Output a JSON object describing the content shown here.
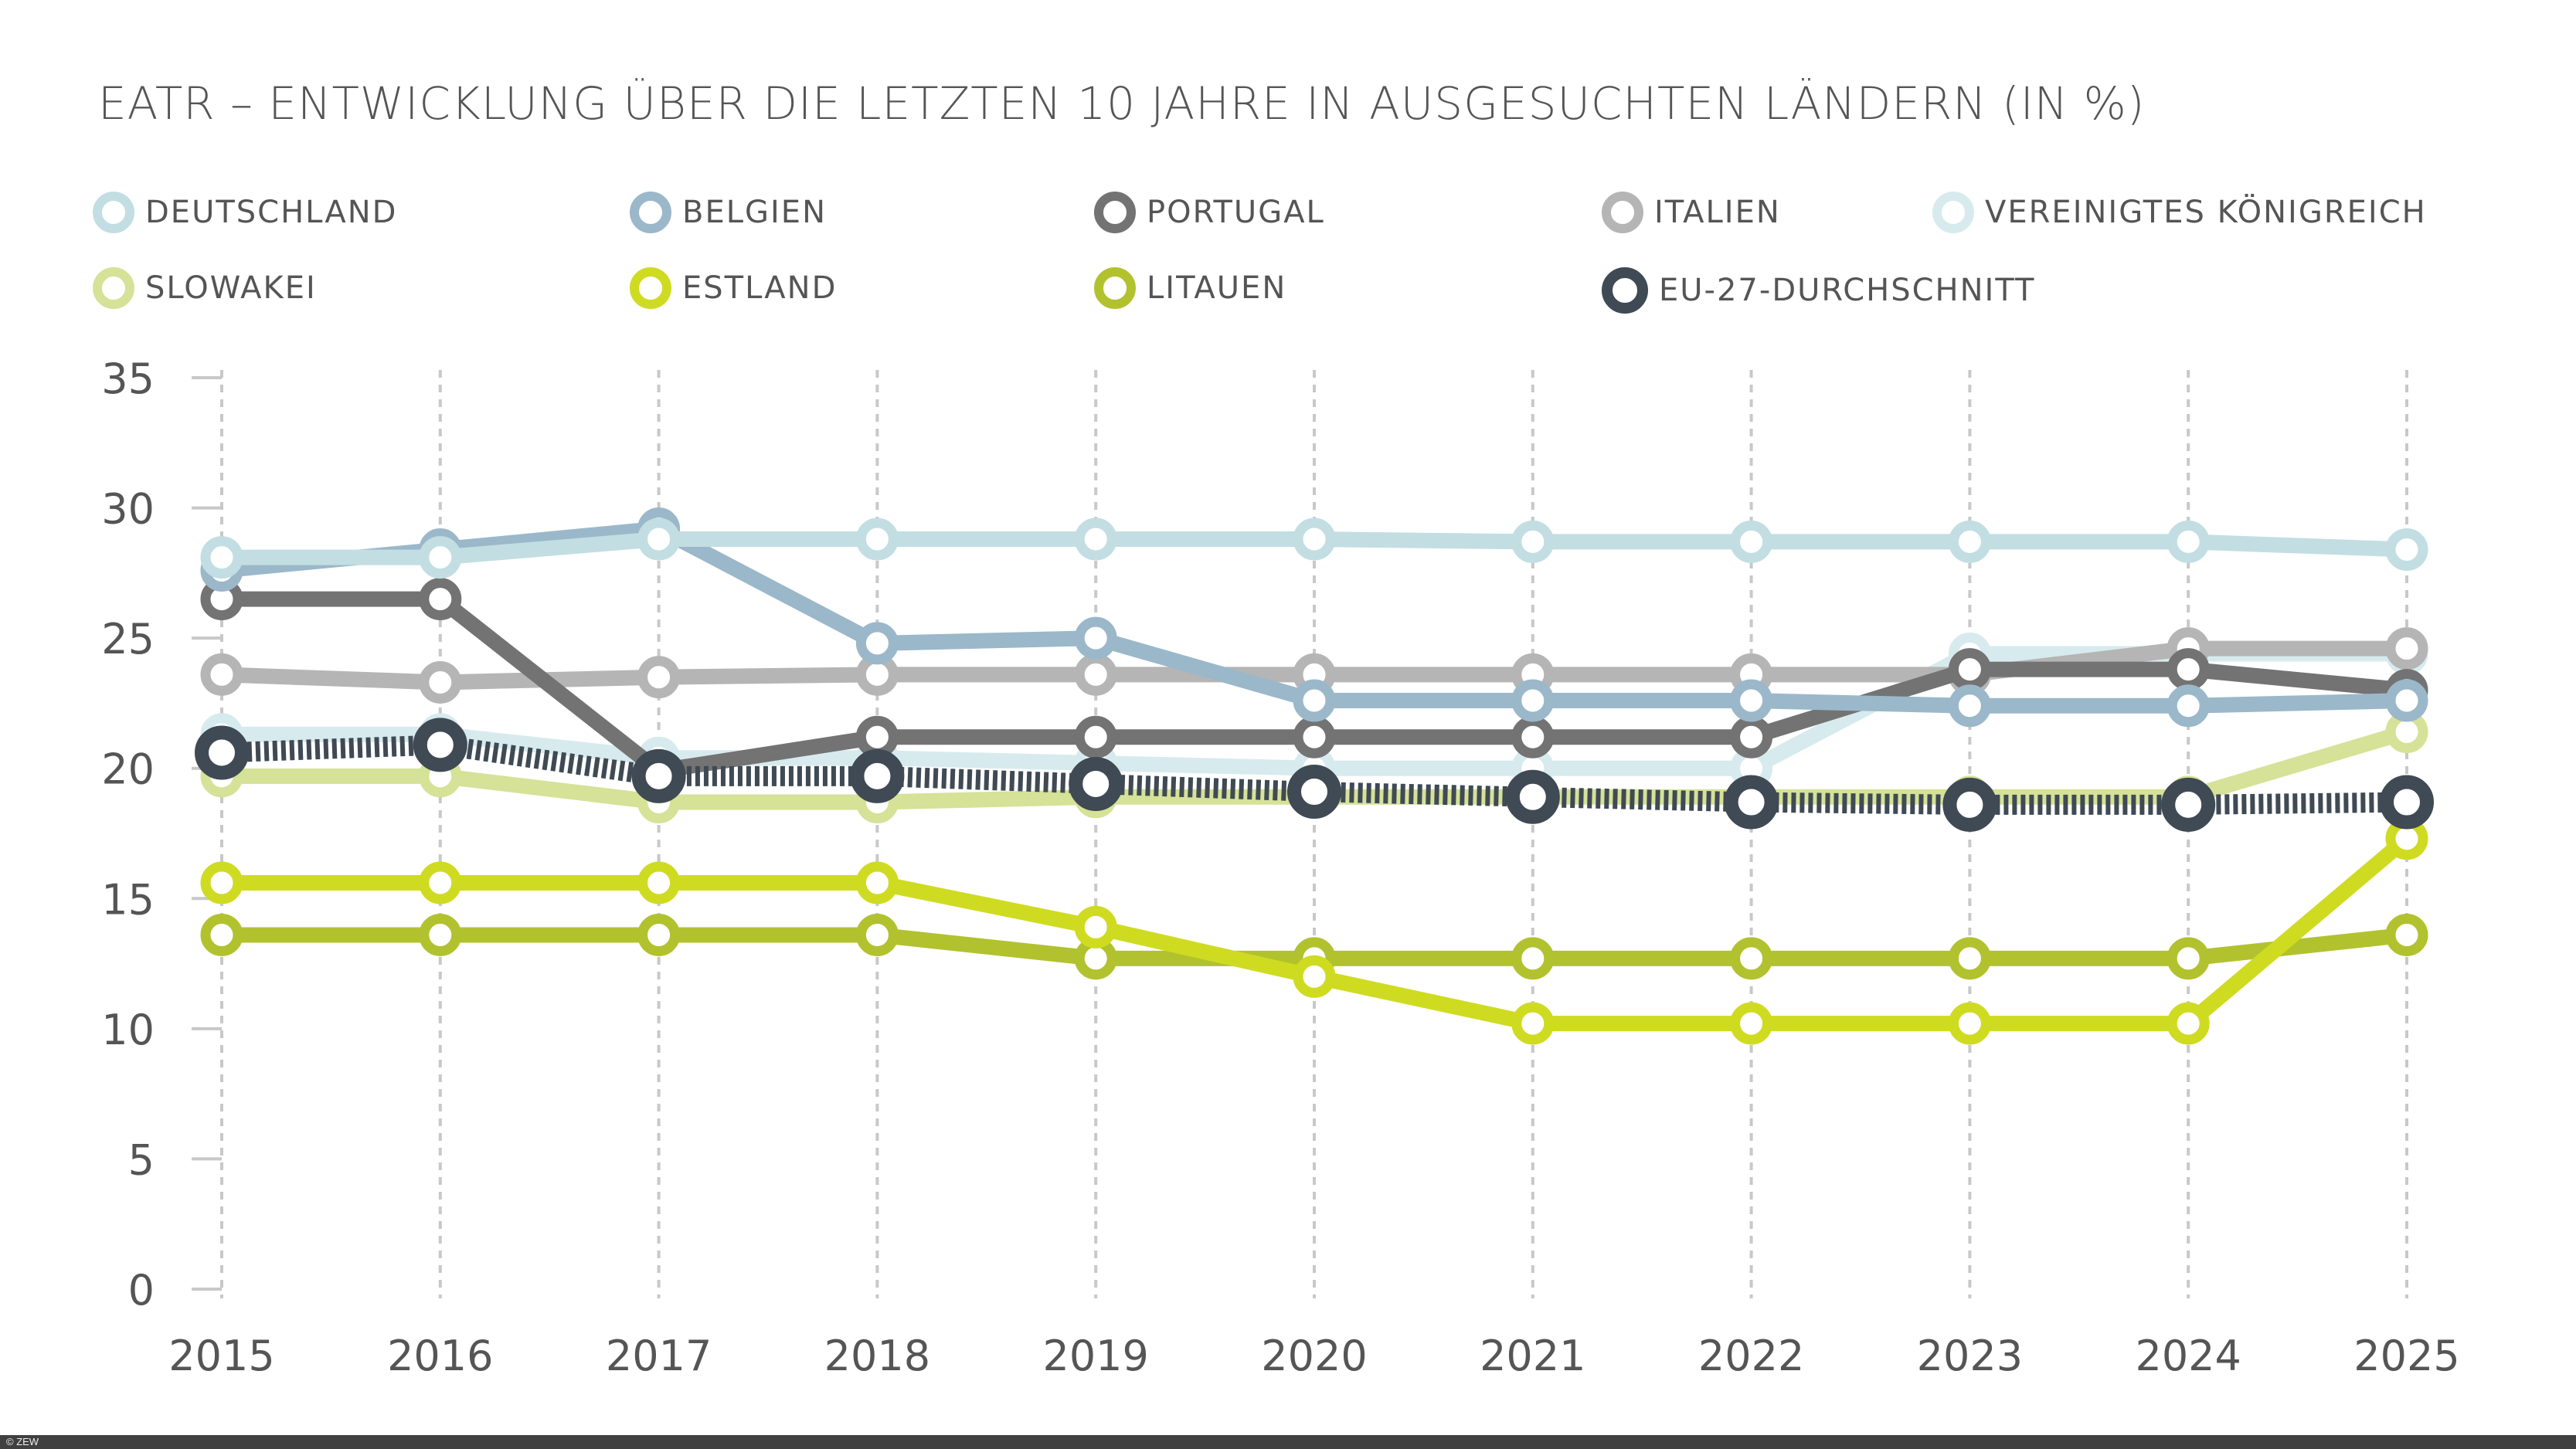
{
  "chart_data": {
    "type": "line",
    "title": "EATR – ENTWICKLUNG ÜBER DIE LETZTEN 10 JAHRE IN AUSGESUCHTEN LÄNDERN (IN %)",
    "xlabel": "",
    "ylabel": "",
    "x": [
      "2015",
      "2016",
      "2017",
      "2018",
      "2019",
      "2020",
      "2021",
      "2022",
      "2023",
      "2024",
      "2025"
    ],
    "ylim": [
      0,
      35
    ],
    "yticks": [
      "0",
      "5",
      "10",
      "15",
      "20",
      "25",
      "30",
      "35"
    ],
    "grid": "vertical dashed",
    "legend_placement": "top",
    "series": [
      {
        "name": "DEUTSCHLAND",
        "color": "#c2dee2",
        "values": [
          28.1,
          28.1,
          28.8,
          28.8,
          28.8,
          28.8,
          28.7,
          28.7,
          28.7,
          28.7,
          28.4
        ]
      },
      {
        "name": "BELGIEN",
        "color": "#9bb8ca",
        "values": [
          27.6,
          28.4,
          29.2,
          24.8,
          25.0,
          22.6,
          22.6,
          22.6,
          22.4,
          22.4,
          22.6
        ]
      },
      {
        "name": "PORTUGAL",
        "color": "#737373",
        "values": [
          26.5,
          26.5,
          19.9,
          21.2,
          21.2,
          21.2,
          21.2,
          21.2,
          23.8,
          23.8,
          23.0
        ]
      },
      {
        "name": "ITALIEN",
        "color": "#b5b5b5",
        "values": [
          23.6,
          23.3,
          23.5,
          23.6,
          23.6,
          23.6,
          23.6,
          23.6,
          23.6,
          24.6,
          24.6
        ]
      },
      {
        "name": "VEREINIGTES KÖNIGREICH",
        "color": "#d7ebee",
        "values": [
          21.3,
          21.3,
          20.4,
          20.4,
          20.2,
          20.0,
          20.0,
          20.0,
          24.4,
          24.4,
          24.4
        ]
      },
      {
        "name": "SLOWAKEI",
        "color": "#d5e297",
        "values": [
          19.7,
          19.7,
          18.7,
          18.7,
          18.9,
          18.9,
          18.9,
          18.9,
          18.9,
          18.9,
          21.4
        ]
      },
      {
        "name": "ESTLAND",
        "color": "#cfdb21",
        "values": [
          15.6,
          15.6,
          15.6,
          15.6,
          13.9,
          12.0,
          10.2,
          10.2,
          10.2,
          10.2,
          17.3
        ]
      },
      {
        "name": "LITAUEN",
        "color": "#b1c22e",
        "values": [
          13.6,
          13.6,
          13.6,
          13.6,
          12.7,
          12.7,
          12.7,
          12.7,
          12.7,
          12.7,
          13.6
        ]
      },
      {
        "name": "EU-27-DURCHSCHNITT",
        "color": "#3f4a54",
        "dashed": true,
        "values": [
          20.6,
          20.9,
          19.7,
          19.7,
          19.4,
          19.1,
          18.9,
          18.7,
          18.6,
          18.6,
          18.7
        ]
      }
    ]
  },
  "footer": {
    "copyright": "© ZEW"
  }
}
